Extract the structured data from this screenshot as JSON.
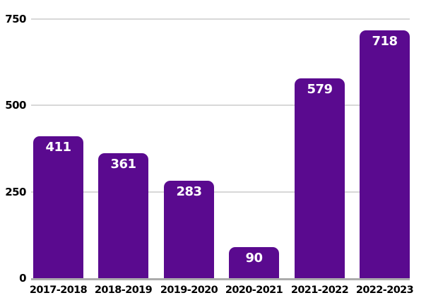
{
  "chart_data": {
    "type": "bar",
    "title": "",
    "categories": [
      "2017-2018",
      "2018-2019",
      "2019-2020",
      "2020-2021",
      "2021-2022",
      "2022-2023"
    ],
    "values": [
      411,
      361,
      283,
      90,
      579,
      718
    ],
    "yticks": [
      0,
      250,
      500,
      750
    ],
    "ylim": [
      0,
      750
    ],
    "xlabel": "",
    "ylabel": "",
    "grid": true,
    "legend_position": "none",
    "colors": {
      "bar": "#5A0A8F",
      "bar_label": "#FFFFFF",
      "gridline": "#D8D8D8",
      "axis_line": "#ACACAC",
      "tick_text": "#000000",
      "background": "#FFFFFF"
    }
  }
}
